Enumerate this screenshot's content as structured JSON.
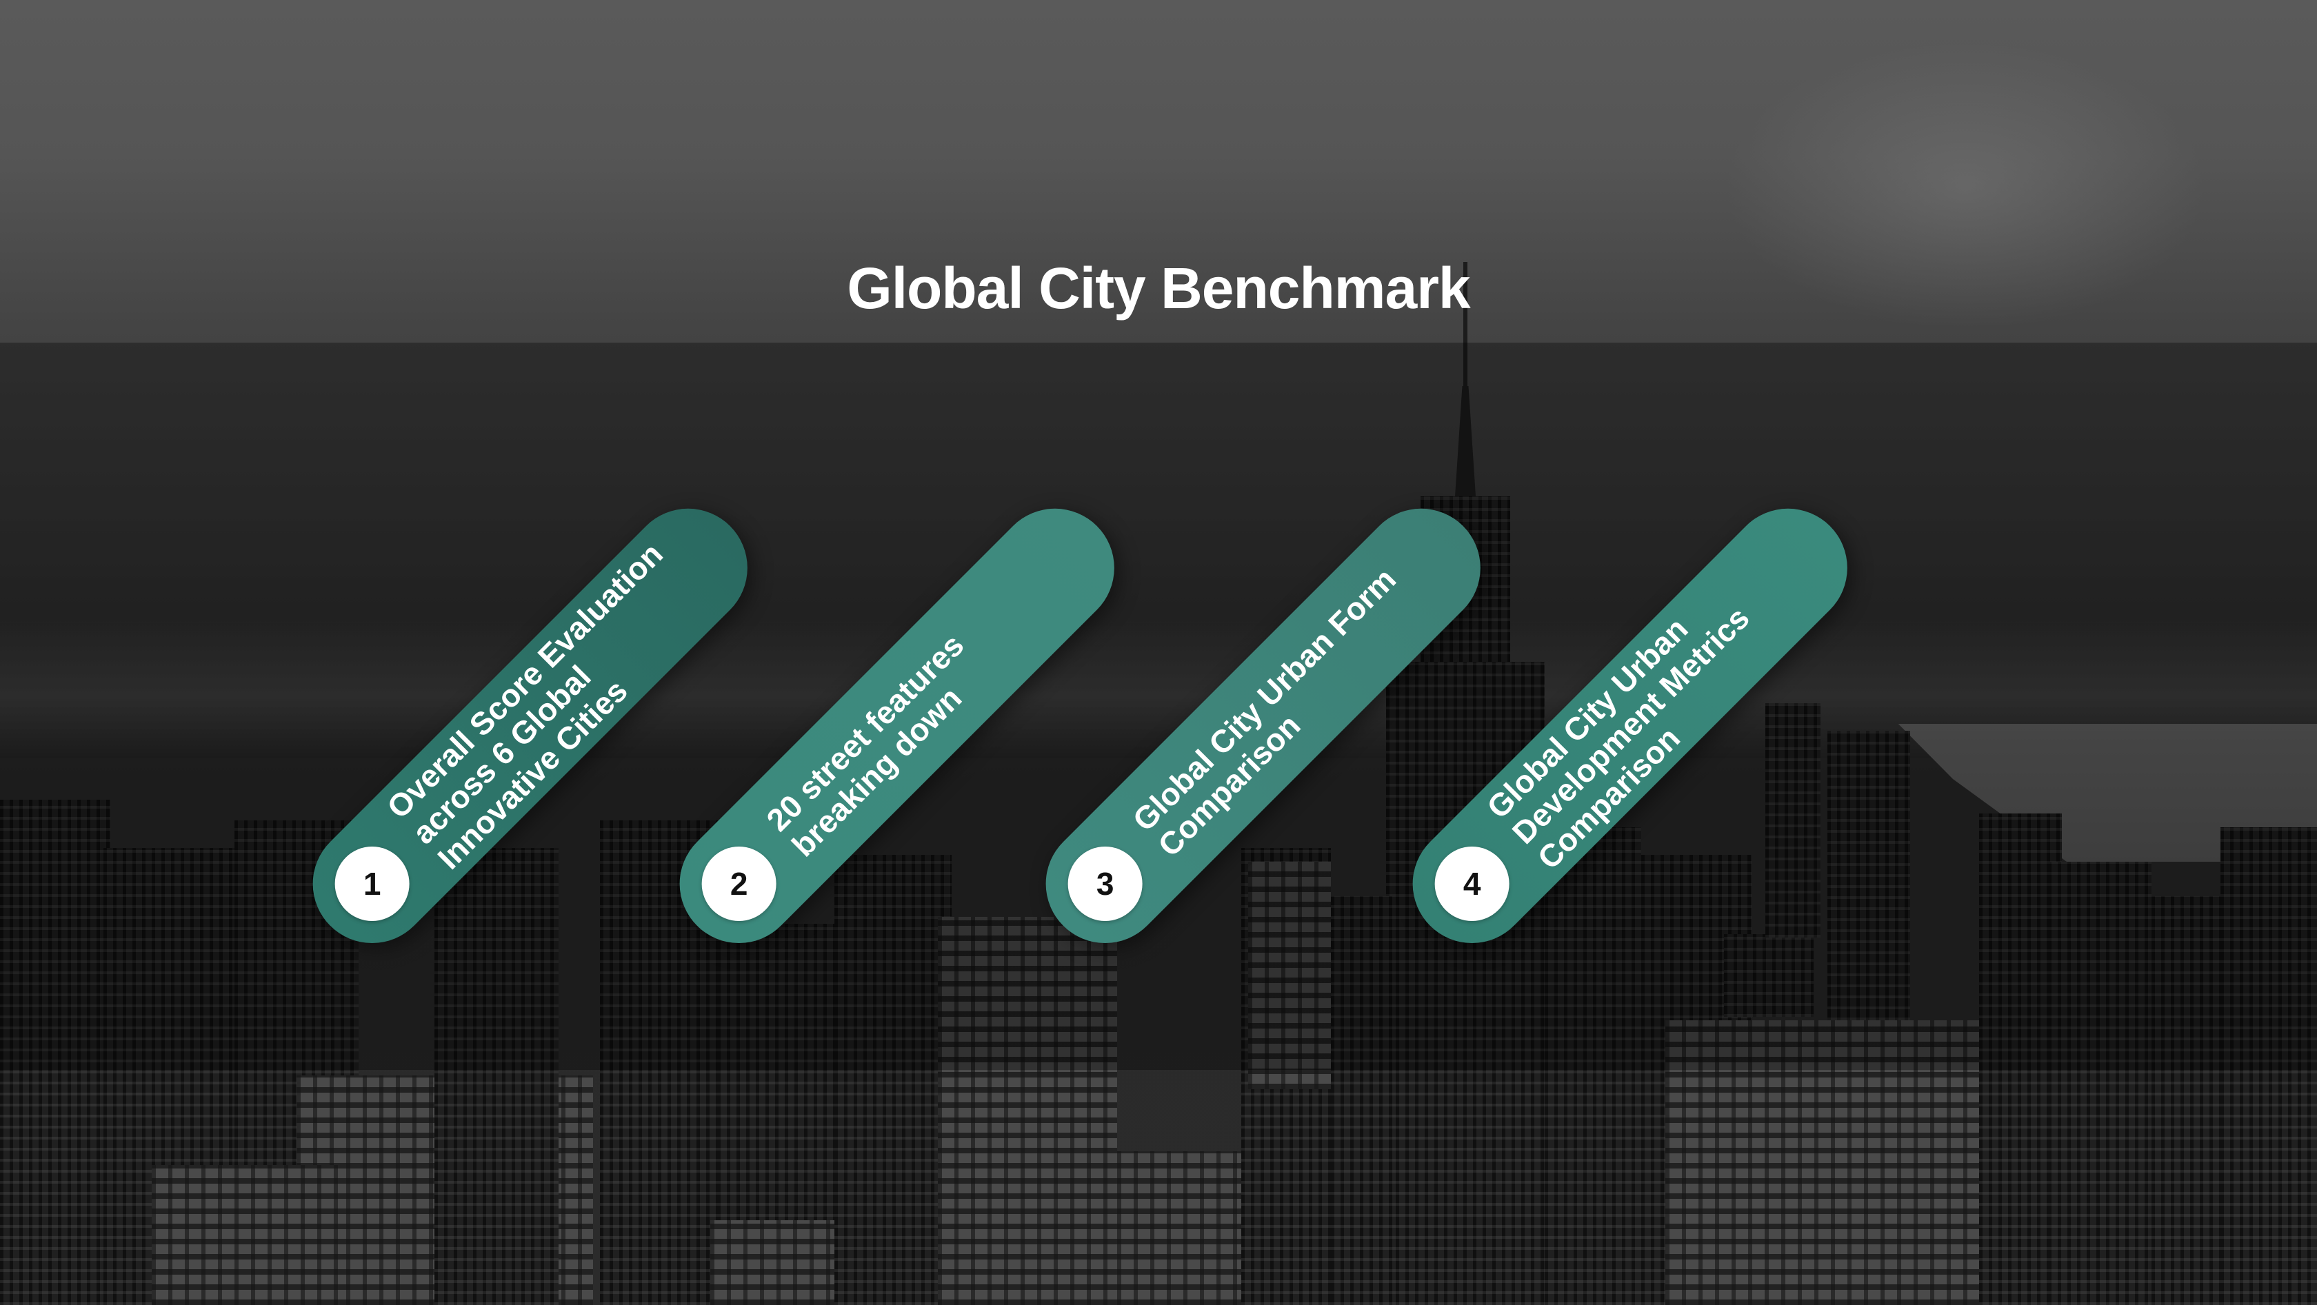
{
  "page": {
    "title": "Global City Benchmark"
  },
  "items": [
    {
      "number": "1",
      "label": "Overall Score Evaluation across 6 Global Innovative Cities"
    },
    {
      "number": "2",
      "label": "20 street features breaking down"
    },
    {
      "number": "3",
      "label": "Global City Urban Form Comparison"
    },
    {
      "number": "4",
      "label": "Global City Urban Development Metrics Comparison"
    }
  ],
  "colors": {
    "accent_teal": "#3b8a7d",
    "accent_teal_dark": "#2a6a61",
    "badge_bg": "#ffffff",
    "title_text": "#ffffff"
  },
  "background": {
    "subject": "city skyline photo",
    "tone": "grayscale"
  }
}
